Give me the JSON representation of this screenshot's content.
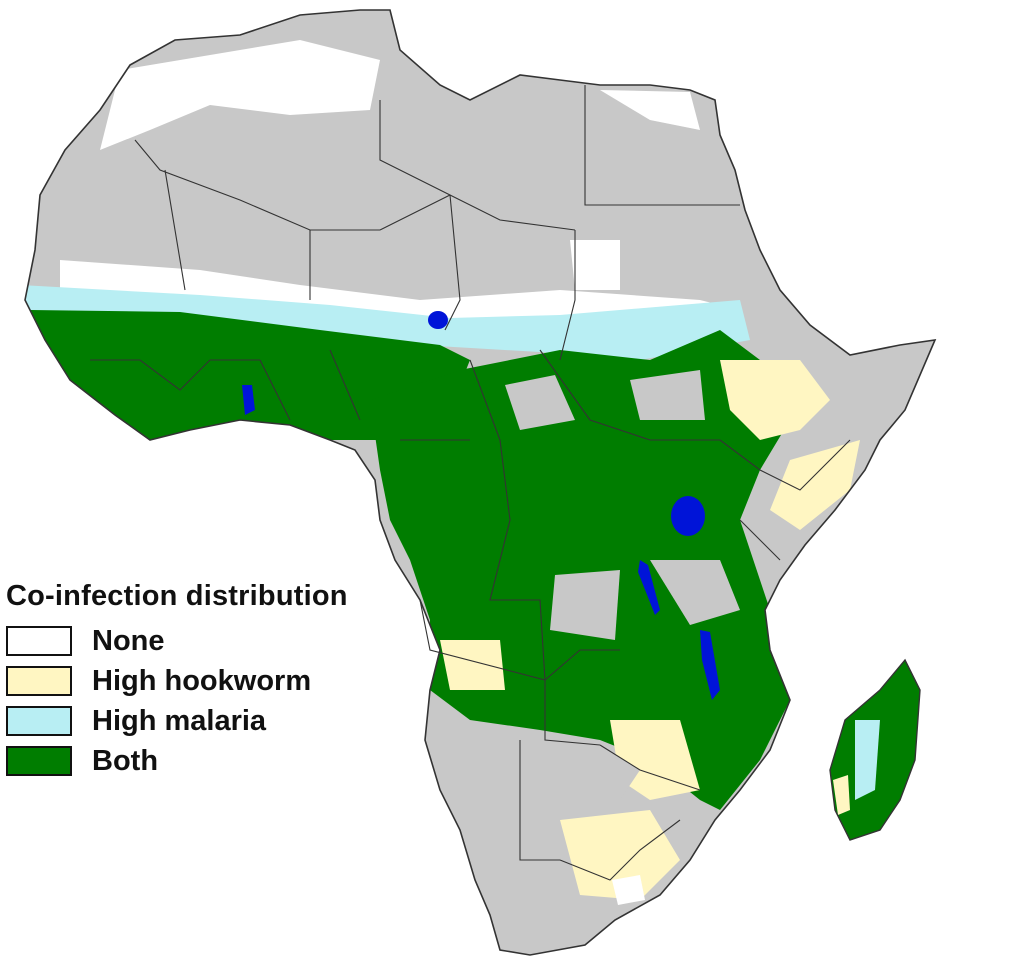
{
  "legend": {
    "title": "Co-infection distribution",
    "items": [
      {
        "key": "none",
        "label": "None",
        "color": "#ffffff"
      },
      {
        "key": "hookworm",
        "label": "High hookworm",
        "color": "#fff6c2"
      },
      {
        "key": "malaria",
        "label": "High malaria",
        "color": "#b8eef3"
      },
      {
        "key": "both",
        "label": "Both",
        "color": "#007d00"
      }
    ]
  },
  "colors": {
    "land_default": "#c8c8c8",
    "water": "#0014d8",
    "borders": "#333333",
    "none": "#ffffff",
    "hookworm": "#fff6c2",
    "malaria": "#b8eef3",
    "both": "#007d00"
  }
}
